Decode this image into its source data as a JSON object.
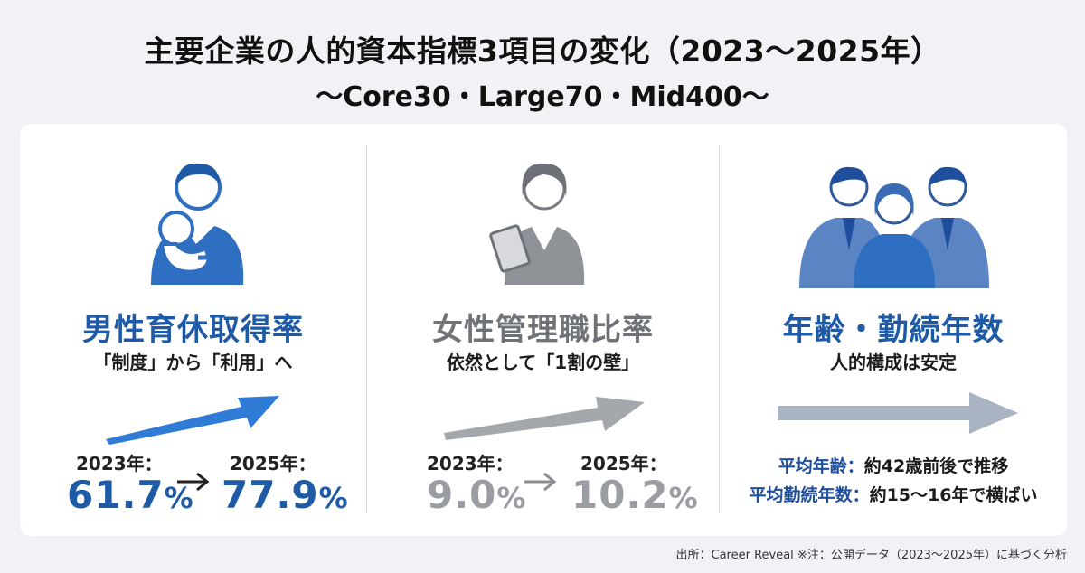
{
  "header": {
    "title": "主要企業の人的資本指標3項目の変化（2023〜2025年）",
    "subtitle": "〜Core30・Large70・Mid400〜"
  },
  "panels": [
    {
      "heading": "男性育休取得率",
      "subheading": "「制度」から「利用」へ",
      "year_start_label": "2023年：",
      "value_start": "61.7",
      "year_end_label": "2025年：",
      "value_end": "77.9",
      "unit": "%",
      "color": "#1f5aa6",
      "icon": "father-holding-baby-icon"
    },
    {
      "heading": "女性管理職比率",
      "subheading": "依然として「1割の壁」",
      "year_start_label": "2023年：",
      "value_start": "9.0",
      "year_end_label": "2025年：",
      "value_end": "10.2",
      "unit": "%",
      "color": "#8a8d92",
      "icon": "businesswoman-with-tablet-icon"
    },
    {
      "heading": "年齢・勤続年数",
      "subheading": "人的構成は安定",
      "color": "#1f5aa6",
      "icon": "business-team-icon",
      "stats": [
        {
          "label": "平均年齢",
          "sep": "：",
          "value": "約42歳前後で推移"
        },
        {
          "label": "平均勤続年数",
          "sep": "：",
          "value": "約15〜16年で横ばい"
        }
      ]
    }
  ],
  "footer": {
    "source": "出所：Career Reveal ※注：公開データ（2023〜2025年）に基づく分析"
  }
}
